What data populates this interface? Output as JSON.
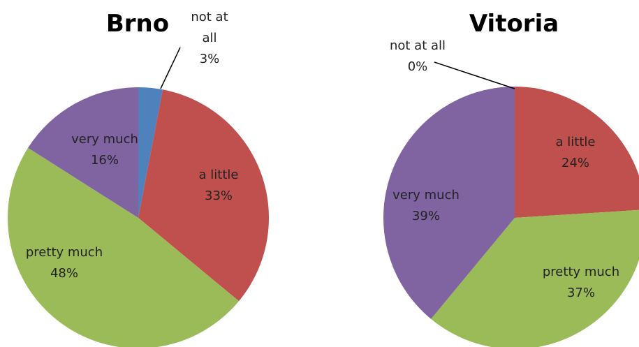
{
  "chart_data": [
    {
      "type": "pie",
      "title": "Brno",
      "categories": [
        "not at all",
        "a little",
        "pretty much",
        "very much"
      ],
      "values": [
        3,
        33,
        48,
        16
      ],
      "value_labels": [
        "3%",
        "33%",
        "48%",
        "16%"
      ],
      "colors": [
        "#4f81bd",
        "#c0504d",
        "#9bbb59",
        "#8064a2"
      ]
    },
    {
      "type": "pie",
      "title": "Vitoria",
      "categories": [
        "not at all",
        "a little",
        "pretty much",
        "very much"
      ],
      "values": [
        0,
        24,
        37,
        39
      ],
      "value_labels": [
        "0%",
        "24%",
        "37%",
        "39%"
      ],
      "colors": [
        "#4f81bd",
        "#c0504d",
        "#9bbb59",
        "#8064a2"
      ]
    }
  ]
}
